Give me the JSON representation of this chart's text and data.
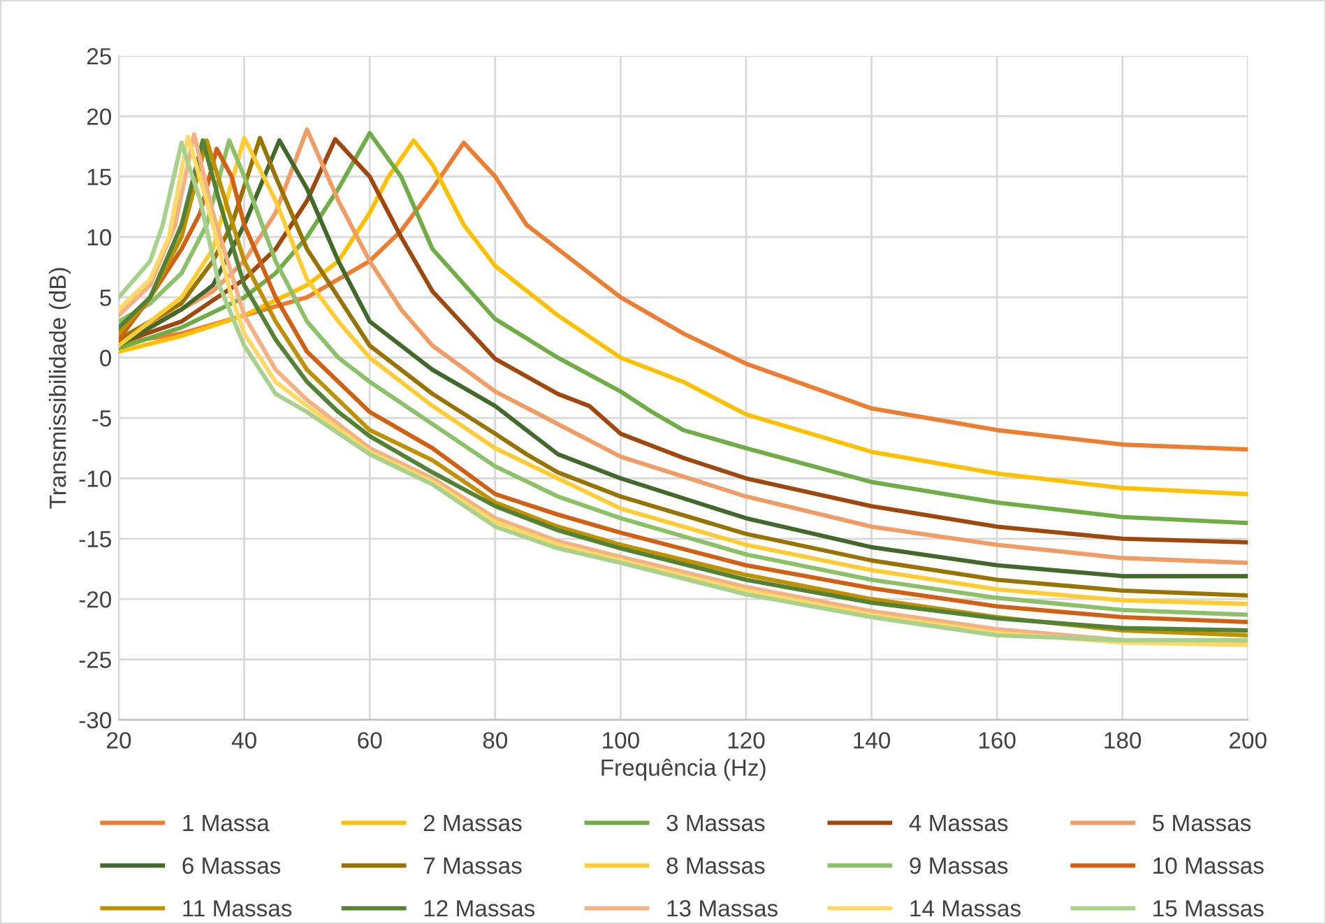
{
  "chart_data": {
    "type": "line",
    "xlabel": "Frequência (Hz)",
    "ylabel": "Transmissibilidade (dB)",
    "xlim": [
      20,
      200
    ],
    "ylim": [
      -30,
      25
    ],
    "xticks": [
      20,
      40,
      60,
      80,
      100,
      120,
      140,
      160,
      180,
      200
    ],
    "yticks": [
      -30,
      -25,
      -20,
      -15,
      -10,
      -5,
      0,
      5,
      10,
      15,
      20,
      25
    ],
    "grid": true,
    "legend": "bottom",
    "marker": "none",
    "line_style": "solid",
    "series": [
      {
        "name": "1 Massa",
        "color": "#ed7d31",
        "x": [
          20,
          30,
          40,
          50,
          60,
          65,
          70,
          75,
          80,
          85,
          90,
          100,
          110,
          120,
          140,
          160,
          180,
          200
        ],
        "values": [
          1.2,
          2,
          3.5,
          5,
          8,
          10.5,
          14,
          17.8,
          15,
          11,
          9,
          5,
          2,
          -0.5,
          -4.2,
          -6,
          -7.2,
          -7.6
        ]
      },
      {
        "name": "2 Massas",
        "color": "#ffc000",
        "x": [
          20,
          30,
          40,
          50,
          55,
          60,
          63,
          67,
          70,
          75,
          80,
          90,
          100,
          110,
          120,
          140,
          160,
          180,
          200
        ],
        "values": [
          0.5,
          1.8,
          3.5,
          6,
          8,
          12,
          15,
          18,
          16,
          11,
          7.6,
          3.5,
          0,
          -2,
          -4.7,
          -7.8,
          -9.6,
          -10.8,
          -11.3
        ]
      },
      {
        "name": "3 Massas",
        "color": "#70ad47",
        "x": [
          20,
          30,
          40,
          45,
          50,
          55,
          60,
          65,
          70,
          80,
          90,
          100,
          105,
          110,
          120,
          140,
          160,
          180,
          200
        ],
        "values": [
          0.8,
          2.5,
          5,
          7,
          10,
          14,
          18.6,
          15,
          9,
          3.2,
          0,
          -2.8,
          -4.5,
          -6,
          -7.5,
          -10.3,
          -12,
          -13.2,
          -13.7
        ]
      },
      {
        "name": "4 Massas",
        "color": "#9e480e",
        "x": [
          20,
          30,
          40,
          45,
          50,
          54.5,
          60,
          65,
          70,
          80,
          90,
          95,
          100,
          110,
          120,
          140,
          160,
          180,
          200
        ],
        "values": [
          1.2,
          3,
          6.5,
          9,
          13,
          18.1,
          15,
          10,
          5.5,
          -0.1,
          -3,
          -4,
          -6.3,
          -8.3,
          -10,
          -12.3,
          -14,
          -15,
          -15.3
        ]
      },
      {
        "name": "5 Massas",
        "color": "#f19c65",
        "x": [
          20,
          30,
          35,
          40,
          45,
          50,
          55,
          60,
          65,
          70,
          80,
          90,
          100,
          120,
          140,
          160,
          180,
          200
        ],
        "values": [
          1.5,
          4,
          5.5,
          8,
          12,
          18.9,
          13,
          8,
          4,
          1,
          -2.8,
          -5.5,
          -8.2,
          -11.5,
          -14,
          -15.5,
          -16.6,
          -17
        ]
      },
      {
        "name": "6 Massas",
        "color": "#43682b",
        "x": [
          20,
          30,
          35,
          40,
          45.6,
          50,
          55,
          60,
          70,
          80,
          90,
          100,
          120,
          140,
          160,
          180,
          200
        ],
        "values": [
          1,
          4,
          6,
          11,
          18,
          14,
          8,
          3,
          -1,
          -4,
          -8,
          -10,
          -13.3,
          -15.7,
          -17.2,
          -18.1,
          -18.1
        ]
      },
      {
        "name": "7 Massas",
        "color": "#997300",
        "x": [
          20,
          30,
          35,
          38,
          42.5,
          45,
          50,
          55,
          60,
          70,
          80,
          85,
          90,
          100,
          120,
          140,
          160,
          180,
          200
        ],
        "values": [
          1.5,
          4.5,
          8,
          11,
          18.2,
          15,
          9,
          5,
          1,
          -3,
          -6.3,
          -8,
          -9.5,
          -11.5,
          -14.6,
          -16.8,
          -18.4,
          -19.3,
          -19.7
        ]
      },
      {
        "name": "8 Massas",
        "color": "#ffcd33",
        "x": [
          20,
          30,
          35,
          40,
          45,
          50,
          55,
          60,
          70,
          80,
          90,
          100,
          120,
          140,
          160,
          180,
          200
        ],
        "values": [
          1,
          5,
          9,
          18.2,
          13,
          6.5,
          3,
          0,
          -4,
          -7.5,
          -10,
          -12.5,
          -15.5,
          -17.6,
          -19.2,
          -20.1,
          -20.4
        ]
      },
      {
        "name": "9 Massas",
        "color": "#8cc168",
        "x": [
          20,
          25,
          30,
          34,
          37.6,
          40,
          45,
          50,
          55,
          60,
          70,
          80,
          90,
          100,
          120,
          140,
          160,
          180,
          200
        ],
        "values": [
          3,
          4.5,
          7,
          11,
          18,
          15,
          8,
          3,
          0,
          -2,
          -5.5,
          -9,
          -11.5,
          -13.3,
          -16.3,
          -18.4,
          -19.9,
          -20.9,
          -21.3
        ]
      },
      {
        "name": "10 Massas",
        "color": "#d26012",
        "x": [
          20,
          25,
          30,
          33,
          35.6,
          38,
          40,
          45,
          50,
          55,
          60,
          70,
          80,
          90,
          100,
          120,
          140,
          160,
          180,
          200
        ],
        "values": [
          1.5,
          5,
          9,
          12,
          17.3,
          15,
          11,
          5,
          0.5,
          -2,
          -4.5,
          -7.5,
          -11.3,
          -13,
          -14.5,
          -17.2,
          -19.1,
          -20.6,
          -21.5,
          -21.9
        ]
      },
      {
        "name": "11 Massas",
        "color": "#bf9000",
        "x": [
          20,
          25,
          30,
          34,
          37,
          40,
          45,
          50,
          60,
          70,
          80,
          90,
          100,
          120,
          140,
          160,
          180,
          200
        ],
        "values": [
          2,
          5,
          10,
          18,
          13,
          8,
          3,
          -1,
          -6,
          -8.5,
          -12,
          -14,
          -15.5,
          -18,
          -20,
          -21.5,
          -22.6,
          -23
        ]
      },
      {
        "name": "12 Massas",
        "color": "#548235",
        "x": [
          20,
          25,
          30,
          33.4,
          36,
          40,
          45,
          50,
          55,
          60,
          70,
          80,
          90,
          100,
          120,
          140,
          160,
          180,
          200
        ],
        "values": [
          2.5,
          5,
          11,
          18,
          13,
          6,
          1.5,
          -2,
          -4.5,
          -6.5,
          -9.5,
          -12.3,
          -14.3,
          -15.8,
          -18.4,
          -20.3,
          -21.6,
          -22.4,
          -22.6
        ]
      },
      {
        "name": "13 Massas",
        "color": "#f4b183",
        "x": [
          20,
          25,
          29,
          32,
          35,
          40,
          45,
          50,
          60,
          70,
          80,
          90,
          100,
          120,
          140,
          160,
          180,
          200
        ],
        "values": [
          3.5,
          6,
          11,
          18.5,
          12,
          3.5,
          -1,
          -3.5,
          -7.5,
          -10,
          -13.3,
          -15.2,
          -16.5,
          -19,
          -21,
          -22.5,
          -23.4,
          -23.5
        ]
      },
      {
        "name": "14 Massas",
        "color": "#ffd966",
        "x": [
          20,
          25,
          28,
          31,
          34,
          38,
          40,
          45,
          50,
          60,
          70,
          80,
          90,
          100,
          120,
          140,
          160,
          180,
          200
        ],
        "values": [
          4,
          6.5,
          10,
          18.3,
          13,
          5,
          2,
          -2,
          -4,
          -7.8,
          -10.3,
          -13.6,
          -15.5,
          -16.8,
          -19.3,
          -21.3,
          -22.8,
          -23.6,
          -23.8
        ]
      },
      {
        "name": "15 Massas",
        "color": "#a9d18e",
        "x": [
          20,
          25,
          27,
          30,
          33,
          36,
          40,
          45,
          50,
          60,
          70,
          80,
          90,
          100,
          120,
          140,
          160,
          180,
          200
        ],
        "values": [
          5,
          8,
          11,
          17.8,
          13,
          6,
          1,
          -3,
          -4.5,
          -8,
          -10.5,
          -14,
          -15.8,
          -17,
          -19.6,
          -21.5,
          -23,
          -23.4,
          -23.4
        ]
      }
    ]
  }
}
